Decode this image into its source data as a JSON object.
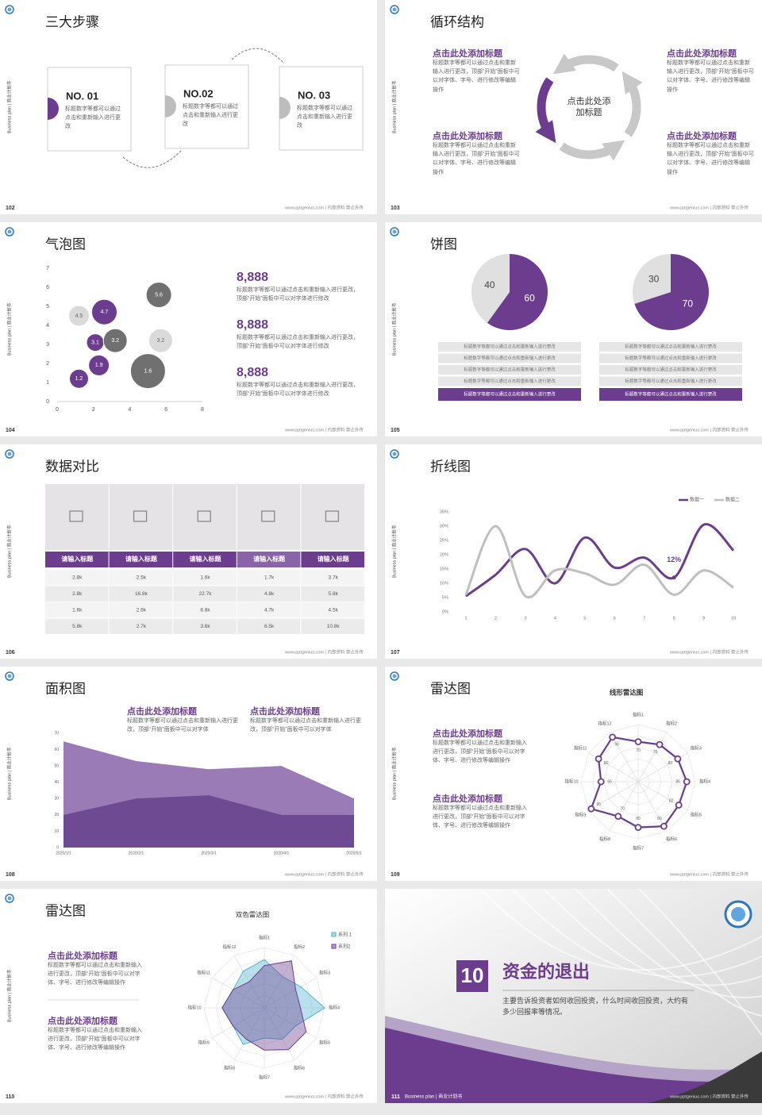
{
  "side_label": "Business plan | 商业计划书",
  "footer": "www.pptgenius.com | 内部资料 禁止外传",
  "slides": [
    {
      "page": "102",
      "title": "三大步骤",
      "steps": [
        {
          "label": "NO. 01",
          "text": "标题数字等都可以通过点击和重新输入进行更改"
        },
        {
          "label": "NO.02",
          "text": "标题数字等都可以通过点击和重新输入进行更改"
        },
        {
          "label": "NO. 03",
          "text": "标题数字等都可以通过点击和重新输入进行更改"
        }
      ]
    },
    {
      "page": "103",
      "title": "循环结构",
      "center": "点击此处添加标题",
      "blocks": [
        {
          "heading": "点击此处添加标题",
          "text": "标题数字等都可以通过点击和重新输入进行更改，顶部“开始”面板中可以对字体、字号、进行修改等编辑操作"
        },
        {
          "heading": "点击此处添加标题",
          "text": "标题数字等都可以通过点击和重新输入进行更改，顶部“开始”面板中可以对字体、字号、进行修改等编辑操作"
        },
        {
          "heading": "点击此处添加标题",
          "text": "标题数字等都可以通过点击和重新输入进行更改，顶部“开始”面板中可以对字体、字号、进行修改等编辑操作"
        },
        {
          "heading": "点击此处添加标题",
          "text": "标题数字等都可以通过点击和重新输入进行更改，顶部“开始”面板中可以对字体、字号、进行修改等编辑操作"
        }
      ]
    },
    {
      "page": "104",
      "title": "气泡图",
      "stats": [
        {
          "value": "8,888",
          "text": "标题数字等都可以通过点击和重新输入进行更改，顶部“开始”面板中可以对字体进行修改"
        },
        {
          "value": "8,888",
          "text": "标题数字等都可以通过点击和重新输入进行更改，顶部“开始”面板中可以对字体进行修改"
        },
        {
          "value": "8,888",
          "text": "标题数字等都可以通过点击和重新输入进行更改，顶部“开始”面板中可以对字体进行修改"
        }
      ]
    },
    {
      "page": "105",
      "title": "饼图",
      "lists": [
        [
          "标题数字等都可以通过点击和重新输入进行更改",
          "标题数字等都可以通过点击和重新输入进行更改",
          "标题数字等都可以通过点击和重新输入进行更改",
          "标题数字等都可以通过点击和重新输入进行更改",
          "标题数字等都可以通过点击和重新输入进行更改"
        ],
        [
          "标题数字等都可以通过点击和重新输入进行更改",
          "标题数字等都可以通过点击和重新输入进行更改",
          "标题数字等都可以通过点击和重新输入进行更改",
          "标题数字等都可以通过点击和重新输入进行更改",
          "标题数字等都可以通过点击和重新输入进行更改"
        ]
      ]
    },
    {
      "page": "106",
      "title": "数据对比",
      "table": {
        "header": [
          "请输入标题",
          "请输入标题",
          "请输入标题",
          "请输入标题",
          "请输入标题"
        ],
        "rows": [
          [
            "2.8k",
            "2.5k",
            "1.6k",
            "1.7k",
            "3.7k"
          ],
          [
            "2.8k",
            "16.8k",
            "22.7k",
            "4.8k",
            "5.8k"
          ],
          [
            "1.6k",
            "2.6k",
            "6.8k",
            "4.7k",
            "4.5k"
          ],
          [
            "5.8k",
            "2.7k",
            "3.6k",
            "6.5k",
            "10.8k"
          ]
        ]
      }
    },
    {
      "page": "107",
      "title": "折线图"
    },
    {
      "page": "108",
      "title": "面积图",
      "blocks": [
        {
          "heading": "点击此处添加标题",
          "text": "标题数字等都可以通过点击和重新输入进行更改，顶部“开始”面板中可以对字体"
        },
        {
          "heading": "点击此处添加标题",
          "text": "标题数字等都可以通过点击和重新输入进行更改，顶部“开始”面板中可以对字体"
        }
      ]
    },
    {
      "page": "109",
      "title": "雷达图",
      "blocks": [
        {
          "heading": "点击此处添加标题",
          "text": "标题数字等都可以通过点击和重新输入进行更改，顶部“开始”面板中可以对字体、字号、进行修改等编辑操作"
        },
        {
          "heading": "点击此处添加标题",
          "text": "标题数字等都可以通过点击和重新输入进行更改，顶部“开始”面板中可以对字体、字号、进行修改等编辑操作"
        }
      ]
    },
    {
      "page": "110",
      "title": "雷达图",
      "blocks": [
        {
          "heading": "点击此处添加标题",
          "text": "标题数字等都可以通过点击和重新输入进行更改，顶部“开始”面板中可以对字体、字号、进行修改等编辑操作"
        },
        {
          "heading": "点击此处添加标题",
          "text": "标题数字等都可以通过点击和重新输入进行更改，顶部“开始”面板中可以对字体、字号、进行修改等编辑操作"
        }
      ]
    },
    {
      "page": "111",
      "number": "10",
      "title": "资金的退出",
      "text": "主要告诉投资者如何收回投资，什么时间收回投资，大约有多少回报率等情况。"
    }
  ],
  "chart_data": [
    {
      "type": "bubble",
      "x": [
        1.2,
        2.3,
        2.1,
        3.2,
        1.2,
        2.6,
        5.6,
        5.7,
        5.0
      ],
      "y": [
        1.2,
        1.9,
        3.1,
        3.2,
        4.5,
        4.7,
        5.6,
        3.2,
        1.6
      ],
      "size": [
        12,
        13,
        11,
        15,
        13,
        16,
        16,
        15,
        22
      ],
      "colors": [
        "#6c3d8f",
        "#6c3d8f",
        "#6c3d8f",
        "#707070",
        "#dadada",
        "#6c3d8f",
        "#707070",
        "#dadada",
        "#707070"
      ],
      "xlim": [
        0,
        8
      ],
      "xticks": [
        0,
        2,
        4,
        6,
        8
      ],
      "ylim": [
        0,
        7
      ],
      "yticks": [
        0,
        1,
        2,
        3,
        4,
        5,
        6,
        7
      ]
    },
    {
      "type": "pie",
      "values": [
        40,
        60
      ],
      "colors": [
        "#e0e0e0",
        "#6c3d8f"
      ]
    },
    {
      "type": "pie",
      "values": [
        30,
        70
      ],
      "colors": [
        "#e0e0e0",
        "#6c3d8f"
      ]
    },
    {
      "type": "line",
      "x": [
        1,
        2,
        3,
        4,
        5,
        6,
        7,
        8,
        9,
        10
      ],
      "xlim": [
        1,
        10
      ],
      "xticks": [
        1,
        2,
        3,
        4,
        5,
        6,
        7,
        8,
        9,
        10
      ],
      "ylim": [
        0,
        35
      ],
      "yticks": [
        {
          "value": 0,
          "label": "0%"
        },
        {
          "value": 5,
          "label": "5%"
        },
        {
          "value": 10,
          "label": "10%"
        },
        {
          "value": 15,
          "label": "15%"
        },
        {
          "value": 20,
          "label": "20%"
        },
        {
          "value": 25,
          "label": "25%"
        },
        {
          "value": 30,
          "label": "30%"
        },
        {
          "value": 35,
          "label": "35%"
        }
      ],
      "series": [
        {
          "name": "数据一",
          "color": "#6c3d8f",
          "values": [
            5.5,
            13,
            22,
            10,
            26,
            15.5,
            19,
            12,
            30.5,
            21.5
          ],
          "value_labels": [
            null,
            null,
            null,
            null,
            null,
            null,
            null,
            "12%",
            null,
            null
          ]
        },
        {
          "name": "数据二",
          "color": "#bfbfbf",
          "values": [
            6,
            30,
            5.5,
            14.5,
            13.5,
            9.5,
            16.5,
            6,
            14.5,
            8.5
          ]
        }
      ]
    },
    {
      "type": "area",
      "categories": [
        "2020/1/1",
        "2020/2/1",
        "2020/3/1",
        "2020/4/1",
        "2020/5/1"
      ],
      "ylim": [
        0,
        70
      ],
      "yticks": [
        0,
        10,
        20,
        30,
        40,
        50,
        60,
        70
      ],
      "series": [
        {
          "color": "#9a7bb6",
          "values": [
            65,
            53,
            48,
            50,
            30
          ]
        },
        {
          "color": "#6e4a92",
          "values": [
            20,
            30,
            32,
            20,
            20
          ]
        }
      ]
    },
    {
      "type": "radar",
      "title": "线形雷达图",
      "categories": [
        "指标1",
        "指标2",
        "指标3",
        "指标4",
        "指标5",
        "指标6",
        "指标7",
        "指标8",
        "指标9",
        "指标10",
        "指标11",
        "指标12"
      ],
      "ylim": [
        0,
        100
      ],
      "series": [
        {
          "color": "#6c3d8f",
          "values": [
            70,
            75,
            80,
            85,
            82,
            90,
            80,
            70,
            95,
            65,
            80,
            90
          ]
        }
      ]
    },
    {
      "type": "radar",
      "title": "双色雷达图",
      "categories": [
        "指标1",
        "指标2",
        "指标3",
        "指标4",
        "指标5",
        "指标6",
        "指标7",
        "指标8",
        "指标9",
        "指标10",
        "指标11",
        "指标12"
      ],
      "ylim": [
        0,
        100
      ],
      "series": [
        {
          "name": "系列 1",
          "color": "#4fb3cf",
          "values": [
            80,
            60,
            70,
            100,
            60,
            60,
            50,
            70,
            60,
            70,
            60,
            70
          ]
        },
        {
          "name": "系列2",
          "color": "#6c3d8f",
          "values": [
            70,
            90,
            60,
            60,
            80,
            80,
            70,
            60,
            60,
            70,
            60,
            50
          ]
        }
      ]
    }
  ]
}
